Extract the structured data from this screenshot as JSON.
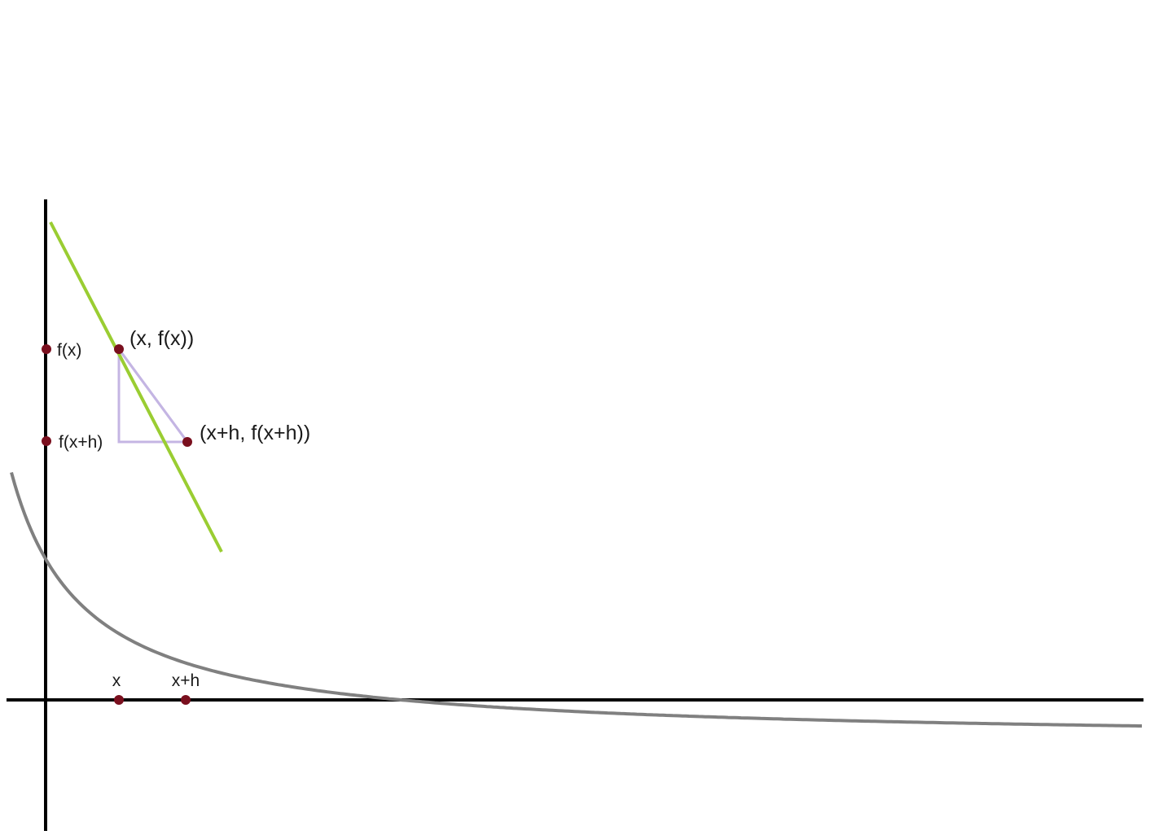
{
  "diagram": {
    "x_ticks": [
      {
        "id": "x",
        "label": "x"
      },
      {
        "id": "xh",
        "label": "x+h"
      }
    ],
    "y_ticks": [
      {
        "id": "fx",
        "label": "f(x)"
      },
      {
        "id": "fxh",
        "label": "f(x+h)"
      }
    ],
    "points": [
      {
        "id": "p1",
        "label": "(x, f(x))"
      },
      {
        "id": "p2",
        "label": "(x+h, f(x+h))"
      }
    ],
    "colors": {
      "axis": "#000000",
      "curve": "#808080",
      "tangent": "#9acd32",
      "secant_triangle": "#c4b5e3",
      "marker": "#7a0f1e"
    }
  }
}
